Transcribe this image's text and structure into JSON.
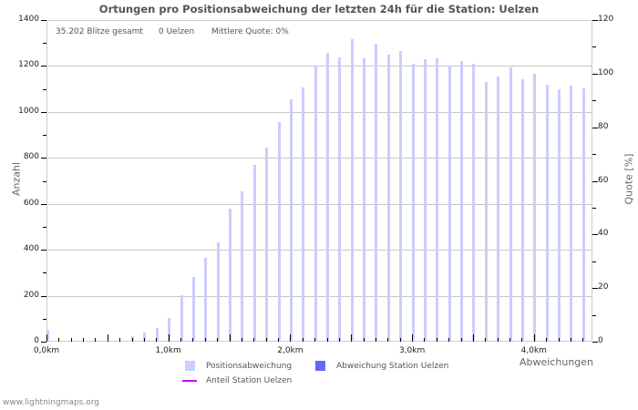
{
  "title": "Ortungen pro Positionsabweichung der letzten 24h für die Station: Uelzen",
  "stats": {
    "total": "35.202 Blitze gesamt",
    "station": "0 Uelzen",
    "quote": "Mittlere Quote: 0%"
  },
  "axes": {
    "left_title": "Anzahl",
    "right_title": "Quote [%]",
    "x_title": "Abweichungen"
  },
  "legend": {
    "items": [
      {
        "label": "Positionsabweichung",
        "color": "#ccccff",
        "kind": "box"
      },
      {
        "label": "Abweichung Station Uelzen",
        "color": "#6666ff",
        "kind": "box"
      },
      {
        "label": "Anteil Station Uelzen",
        "color": "#cc00ff",
        "kind": "line"
      }
    ]
  },
  "footer": "www.lightningmaps.org",
  "chart_data": {
    "type": "bar",
    "title": "Ortungen pro Positionsabweichung der letzten 24h für die Station: Uelzen",
    "xlabel": "Abweichungen",
    "ylabel": "Anzahl",
    "y2label": "Quote [%]",
    "ylim": [
      0,
      1400
    ],
    "y2lim": [
      0,
      120
    ],
    "yticks": [
      0,
      200,
      400,
      600,
      800,
      1000,
      1200,
      1400
    ],
    "y2ticks": [
      0,
      20,
      40,
      60,
      80,
      100,
      120
    ],
    "xticks": [
      {
        "pos": 0,
        "label": "0,0km"
      },
      {
        "pos": 10,
        "label": "1,0km"
      },
      {
        "pos": 20,
        "label": "2,0km"
      },
      {
        "pos": 30,
        "label": "3,0km"
      },
      {
        "pos": 40,
        "label": "4,0km"
      }
    ],
    "grid": true,
    "legend_position": "bottom",
    "categories": [
      "0.0",
      "0.1",
      "0.2",
      "0.3",
      "0.4",
      "0.5",
      "0.6",
      "0.7",
      "0.8",
      "0.9",
      "1.0",
      "1.1",
      "1.2",
      "1.3",
      "1.4",
      "1.5",
      "1.6",
      "1.7",
      "1.8",
      "1.9",
      "2.0",
      "2.1",
      "2.2",
      "2.3",
      "2.4",
      "2.5",
      "2.6",
      "2.7",
      "2.8",
      "2.9",
      "3.0",
      "3.1",
      "3.2",
      "3.3",
      "3.4",
      "3.5",
      "3.6",
      "3.7",
      "3.8",
      "3.9",
      "4.0",
      "4.1",
      "4.2",
      "4.3",
      "4.4"
    ],
    "series": [
      {
        "name": "Positionsabweichung",
        "color": "#ccccff",
        "values": [
          52,
          0,
          0,
          0,
          0,
          0,
          0,
          24,
          41,
          60,
          104,
          202,
          283,
          365,
          434,
          579,
          655,
          770,
          845,
          956,
          1055,
          1107,
          1197,
          1257,
          1237,
          1317,
          1235,
          1297,
          1249,
          1265,
          1210,
          1230,
          1234,
          1202,
          1222,
          1210,
          1130,
          1154,
          1194,
          1142,
          1166,
          1118,
          1099,
          1114,
          1103
        ]
      },
      {
        "name": "Abweichung Station Uelzen",
        "color": "#6666ff",
        "values": [
          0,
          0,
          0,
          0,
          0,
          0,
          0,
          0,
          0,
          0,
          0,
          0,
          0,
          0,
          0,
          0,
          0,
          0,
          0,
          0,
          0,
          0,
          0,
          0,
          0,
          0,
          0,
          0,
          0,
          0,
          0,
          0,
          0,
          0,
          0,
          0,
          0,
          0,
          0,
          0,
          0,
          0,
          0,
          0,
          0
        ]
      },
      {
        "name": "Anteil Station Uelzen",
        "color": "#cc00ff",
        "axis": "right",
        "values": [
          0,
          0,
          0,
          0,
          0,
          0,
          0,
          0,
          0,
          0,
          0,
          0,
          0,
          0,
          0,
          0,
          0,
          0,
          0,
          0,
          0,
          0,
          0,
          0,
          0,
          0,
          0,
          0,
          0,
          0,
          0,
          0,
          0,
          0,
          0,
          0,
          0,
          0,
          0,
          0,
          0,
          0,
          0,
          0,
          0
        ]
      }
    ]
  }
}
